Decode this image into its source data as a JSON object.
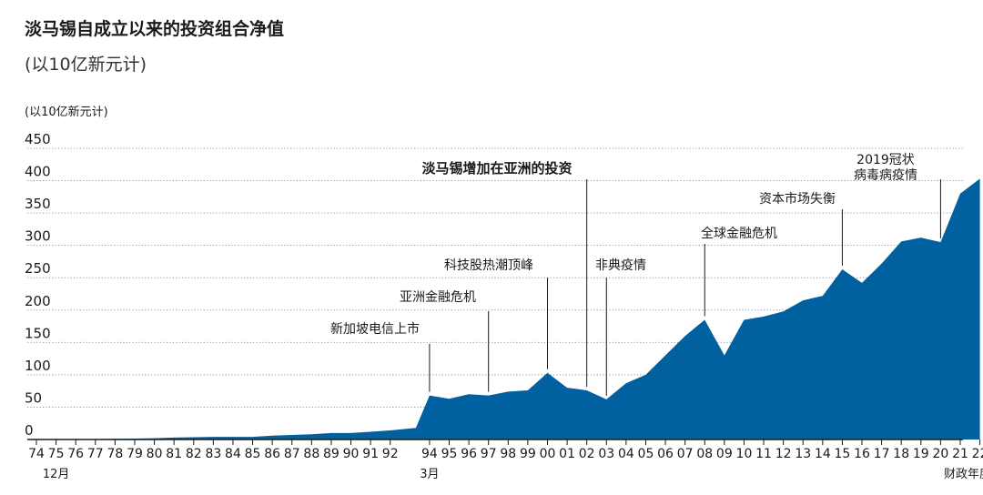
{
  "title": "淡马锡自成立以来的投资组合净值",
  "subtitle": "(以10亿新元计)",
  "chart_data": {
    "type": "area",
    "ylabel": "(以10亿新元计)",
    "xlabel": "财政年度",
    "ylim": [
      0,
      450
    ],
    "yticks": [
      0,
      50,
      100,
      150,
      200,
      250,
      300,
      350,
      400,
      450
    ],
    "grid": "horizontal dotted",
    "color": "#0060a0",
    "x": [
      "74",
      "75",
      "76",
      "77",
      "78",
      "79",
      "80",
      "81",
      "82",
      "83",
      "84",
      "85",
      "86",
      "87",
      "88",
      "89",
      "90",
      "91",
      "92",
      "94a",
      "94",
      "95",
      "96",
      "97",
      "98",
      "99",
      "00",
      "01",
      "02",
      "03",
      "04",
      "05",
      "06",
      "07",
      "08",
      "09",
      "10",
      "11",
      "12",
      "13",
      "14",
      "15",
      "16",
      "17",
      "18",
      "19",
      "20",
      "21",
      "22"
    ],
    "values": [
      0.35,
      0.4,
      0.5,
      0.7,
      1,
      1.4,
      2,
      3,
      3.5,
      4,
      4,
      4,
      6,
      7,
      8,
      10,
      10,
      12,
      14,
      18,
      68,
      63,
      70,
      68,
      74,
      76,
      103,
      80,
      76,
      62,
      87,
      100,
      130,
      160,
      185,
      130,
      185,
      190,
      198,
      215,
      222,
      263,
      242,
      272,
      306,
      312,
      305,
      380,
      403
    ],
    "xtick_labels": [
      "74",
      "75",
      "76",
      "77",
      "78",
      "79",
      "80",
      "81",
      "82",
      "83",
      "84",
      "85",
      "86",
      "87",
      "88",
      "89",
      "90",
      "91",
      "92",
      "94",
      "95",
      "96",
      "97",
      "98",
      "99",
      "00",
      "01",
      "02",
      "03",
      "04",
      "05",
      "06",
      "07",
      "08",
      "09",
      "10",
      "11",
      "12",
      "13",
      "14",
      "15",
      "16",
      "17",
      "18",
      "19",
      "20",
      "21",
      "22"
    ],
    "sublabels": [
      {
        "under": "75",
        "text": "12月"
      },
      {
        "under": "94",
        "text": "3月"
      },
      {
        "under": "21",
        "text": "财政年度"
      }
    ],
    "annotations": [
      {
        "text": "新加坡电信上市",
        "at": "94"
      },
      {
        "text": "亚洲金融危机",
        "at": "97"
      },
      {
        "text": "科技股热潮顶峰",
        "at": "00"
      },
      {
        "text": "淡马锡增加在亚洲的投资",
        "at": "02",
        "bold": true
      },
      {
        "text": "非典疫情",
        "at": "03"
      },
      {
        "text": "全球金融危机",
        "at": "08"
      },
      {
        "text": "资本市场失衡",
        "at": "15"
      },
      {
        "lines": [
          "2019冠状",
          "病毒病疫情"
        ],
        "at": "20"
      }
    ]
  }
}
